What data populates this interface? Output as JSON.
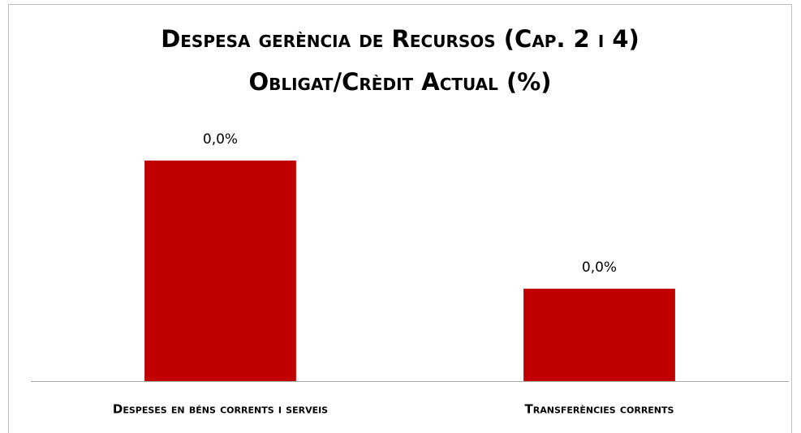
{
  "chart_data": {
    "type": "bar",
    "title": [
      "Despesa gerència de Recursos (Cap. 2 i 4)",
      "Obligat/Crèdit Actual (%)"
    ],
    "categories": [
      "Despeses en béns corrents i serveis",
      "Transferències corrents"
    ],
    "values": [
      0.043,
      0.018
    ],
    "value_labels": [
      "0,0%",
      "0,0%"
    ],
    "color": "#c00000"
  }
}
